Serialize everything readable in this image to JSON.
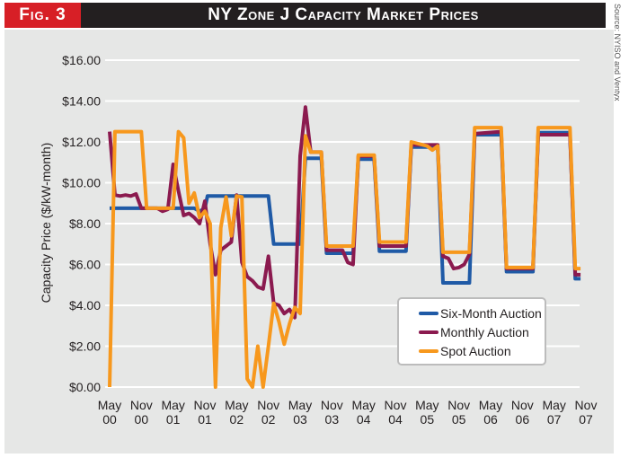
{
  "header": {
    "fig_label": "Fig. 3",
    "title": "NY Zone J Capacity Market Prices",
    "source": "Source: NYISO and Ventyx"
  },
  "colors": {
    "six_month": "#1f5aa6",
    "monthly": "#8b1a4f",
    "spot": "#f7981d",
    "header_red": "#d71f26",
    "header_dark": "#231f20",
    "panel": "#e6e7e6"
  },
  "chart_data": {
    "type": "line",
    "title": "NY Zone J Capacity Market Prices",
    "xlabel": "",
    "ylabel": "Capacity Price ($/kW-month)",
    "ylim": [
      0,
      16
    ],
    "yticks": [
      "$0.00",
      "$2.00",
      "$4.00",
      "$6.00",
      "$8.00",
      "$10.00",
      "$12.00",
      "$14.00",
      "$16.00"
    ],
    "ytick_values": [
      0,
      2,
      4,
      6,
      8,
      10,
      12,
      14,
      16
    ],
    "xticks": [
      {
        "month": 0,
        "line1": "May",
        "line2": "00"
      },
      {
        "month": 6,
        "line1": "Nov",
        "line2": "00"
      },
      {
        "month": 12,
        "line1": "May",
        "line2": "01"
      },
      {
        "month": 18,
        "line1": "Nov",
        "line2": "01"
      },
      {
        "month": 24,
        "line1": "May",
        "line2": "02"
      },
      {
        "month": 30,
        "line1": "Nov",
        "line2": "02"
      },
      {
        "month": 36,
        "line1": "May",
        "line2": "03"
      },
      {
        "month": 42,
        "line1": "Nov",
        "line2": "03"
      },
      {
        "month": 48,
        "line1": "May",
        "line2": "04"
      },
      {
        "month": 54,
        "line1": "Nov",
        "line2": "04"
      },
      {
        "month": 60,
        "line1": "May",
        "line2": "05"
      },
      {
        "month": 66,
        "line1": "Nov",
        "line2": "05"
      },
      {
        "month": 72,
        "line1": "May",
        "line2": "06"
      },
      {
        "month": 78,
        "line1": "Nov",
        "line2": "06"
      },
      {
        "month": 84,
        "line1": "May",
        "line2": "07"
      },
      {
        "month": 90,
        "line1": "Nov",
        "line2": "07"
      }
    ],
    "xlim_months": [
      0,
      90
    ],
    "grid": true,
    "legend_position": "bottom-right",
    "series": [
      {
        "name": "Six-Month Auction",
        "key": "six_month",
        "points": [
          [
            0,
            8.75
          ],
          [
            6,
            8.75
          ],
          [
            12,
            8.75
          ],
          [
            15,
            8.75
          ],
          [
            16,
            8.75
          ],
          [
            17,
            8.6
          ],
          [
            18,
            8.75
          ],
          [
            18.5,
            9.35
          ],
          [
            30,
            9.35
          ],
          [
            31,
            7.0
          ],
          [
            36,
            7.0
          ],
          [
            37,
            11.2
          ],
          [
            40,
            11.2
          ],
          [
            41,
            6.55
          ],
          [
            46,
            6.55
          ],
          [
            47,
            11.15
          ],
          [
            50,
            11.15
          ],
          [
            51,
            6.65
          ],
          [
            56,
            6.65
          ],
          [
            57,
            11.75
          ],
          [
            62,
            11.75
          ],
          [
            63,
            5.1
          ],
          [
            68,
            5.1
          ],
          [
            69,
            12.35
          ],
          [
            74,
            12.35
          ],
          [
            75,
            5.65
          ],
          [
            80,
            5.65
          ],
          [
            81,
            12.45
          ],
          [
            87,
            12.45
          ],
          [
            88,
            5.3
          ],
          [
            89,
            5.3
          ]
        ]
      },
      {
        "name": "Monthly Auction",
        "key": "monthly",
        "points": [
          [
            0,
            12.5
          ],
          [
            1,
            9.4
          ],
          [
            2,
            9.35
          ],
          [
            3,
            9.4
          ],
          [
            4,
            9.35
          ],
          [
            5,
            9.45
          ],
          [
            6,
            8.75
          ],
          [
            9,
            8.75
          ],
          [
            10,
            8.6
          ],
          [
            11,
            8.7
          ],
          [
            12,
            10.9
          ],
          [
            13,
            9.6
          ],
          [
            14,
            8.4
          ],
          [
            15,
            8.5
          ],
          [
            16,
            8.3
          ],
          [
            17,
            8.0
          ],
          [
            18,
            9.1
          ],
          [
            19,
            7.0
          ],
          [
            20,
            5.5
          ],
          [
            21,
            6.7
          ],
          [
            22,
            6.9
          ],
          [
            23,
            7.1
          ],
          [
            24,
            9.4
          ],
          [
            25,
            6.1
          ],
          [
            26,
            5.4
          ],
          [
            27,
            5.2
          ],
          [
            28,
            4.9
          ],
          [
            29,
            4.8
          ],
          [
            30,
            6.4
          ],
          [
            31,
            4.1
          ],
          [
            32,
            4.0
          ],
          [
            33,
            3.6
          ],
          [
            34,
            3.8
          ],
          [
            35,
            3.4
          ],
          [
            36,
            11.3
          ],
          [
            37,
            13.7
          ],
          [
            38,
            11.5
          ],
          [
            40,
            11.5
          ],
          [
            41,
            6.7
          ],
          [
            44,
            6.7
          ],
          [
            45,
            6.1
          ],
          [
            46,
            6.0
          ],
          [
            47,
            11.3
          ],
          [
            50,
            11.3
          ],
          [
            51,
            6.9
          ],
          [
            56,
            6.9
          ],
          [
            57,
            11.85
          ],
          [
            62,
            11.85
          ],
          [
            63,
            6.4
          ],
          [
            64,
            6.3
          ],
          [
            65,
            5.8
          ],
          [
            66,
            5.85
          ],
          [
            67,
            6.0
          ],
          [
            68,
            6.5
          ],
          [
            69,
            12.4
          ],
          [
            74,
            12.5
          ],
          [
            75,
            5.8
          ],
          [
            80,
            5.8
          ],
          [
            81,
            12.35
          ],
          [
            87,
            12.35
          ],
          [
            88,
            5.5
          ],
          [
            89,
            5.5
          ]
        ]
      },
      {
        "name": "Spot Auction",
        "key": "spot",
        "points": [
          [
            0,
            0.0
          ],
          [
            1,
            12.5
          ],
          [
            6,
            12.5
          ],
          [
            7,
            8.75
          ],
          [
            12,
            8.75
          ],
          [
            13,
            12.5
          ],
          [
            14,
            12.2
          ],
          [
            15,
            9.0
          ],
          [
            16,
            9.5
          ],
          [
            17,
            8.3
          ],
          [
            18,
            8.6
          ],
          [
            19,
            8.0
          ],
          [
            20,
            0.0
          ],
          [
            21,
            7.8
          ],
          [
            22,
            9.3
          ],
          [
            23,
            7.4
          ],
          [
            24,
            9.35
          ],
          [
            25,
            9.3
          ],
          [
            26,
            0.4
          ],
          [
            27,
            0.0
          ],
          [
            28,
            2.0
          ],
          [
            29,
            0.0
          ],
          [
            30,
            2.0
          ],
          [
            31,
            4.1
          ],
          [
            32,
            3.2
          ],
          [
            33,
            2.1
          ],
          [
            34,
            3.1
          ],
          [
            35,
            3.9
          ],
          [
            36,
            3.6
          ],
          [
            37,
            12.3
          ],
          [
            38,
            11.5
          ],
          [
            40,
            11.5
          ],
          [
            41,
            6.9
          ],
          [
            46,
            6.9
          ],
          [
            47,
            11.35
          ],
          [
            50,
            11.35
          ],
          [
            51,
            7.1
          ],
          [
            56,
            7.1
          ],
          [
            57,
            12.0
          ],
          [
            60,
            11.8
          ],
          [
            61,
            11.6
          ],
          [
            62,
            11.8
          ],
          [
            63,
            6.6
          ],
          [
            68,
            6.6
          ],
          [
            69,
            12.7
          ],
          [
            74,
            12.7
          ],
          [
            75,
            5.85
          ],
          [
            80,
            5.85
          ],
          [
            81,
            12.7
          ],
          [
            87,
            12.7
          ],
          [
            88,
            5.8
          ],
          [
            89,
            5.8
          ]
        ]
      }
    ]
  }
}
